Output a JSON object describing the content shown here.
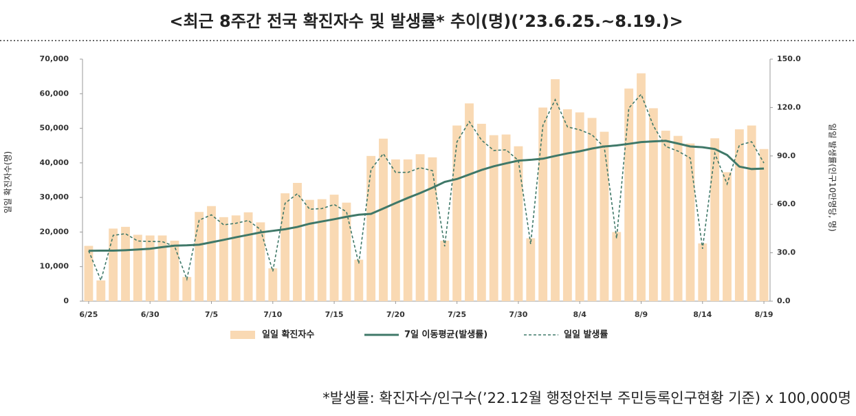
{
  "chart_data": {
    "type": "bar_line",
    "title": "<최근 8주간 전국 확진자수 및 발생률* 추이(명)(’23.6.25.~8.19.)>",
    "y_label": "일일 확진자수(명)",
    "y2_label": "일일 발생률(인구10만명당, 명)",
    "footnote": "*발생률: 확진자수/인구수(’22.12월 행정안전부 주민등록인구현황 기준) x 100,000명",
    "categories": [
      "6/25",
      null,
      null,
      null,
      null,
      "6/30",
      null,
      null,
      null,
      null,
      "7/5",
      null,
      null,
      null,
      null,
      "7/10",
      null,
      null,
      null,
      null,
      "7/15",
      null,
      null,
      null,
      null,
      "7/20",
      null,
      null,
      null,
      null,
      "7/25",
      null,
      null,
      null,
      null,
      "7/30",
      null,
      null,
      null,
      null,
      "8/4",
      null,
      null,
      null,
      null,
      "8/9",
      null,
      null,
      null,
      null,
      "8/14",
      null,
      null,
      null,
      null,
      "8/19"
    ],
    "ylim": [
      0,
      70000
    ],
    "yticks": [
      0,
      {
        "value": 10000,
        "label": "10,000"
      },
      {
        "value": 20000,
        "label": "20,000"
      },
      {
        "value": 30000,
        "label": "30,000"
      },
      {
        "value": 40000,
        "label": "40,000"
      },
      {
        "value": 50000,
        "label": "50,000"
      },
      {
        "value": 60000,
        "label": "60,000"
      },
      {
        "value": 70000,
        "label": "70,000"
      }
    ],
    "y2lim": [
      0,
      150
    ],
    "y2ticks": [
      {
        "value": 0,
        "label": "0.0"
      },
      {
        "value": 30,
        "label": "30.0"
      },
      {
        "value": 60,
        "label": "60.0"
      },
      {
        "value": 90,
        "label": "90.0"
      },
      {
        "value": 120,
        "label": "120.0"
      },
      {
        "value": 150,
        "label": "150.0"
      }
    ],
    "series": [
      {
        "name": "일일 확진자수",
        "kind": "bar",
        "color": "#f9d9b3",
        "values": [
          16000,
          6000,
          21000,
          21500,
          19200,
          19000,
          19000,
          17500,
          7000,
          25800,
          27500,
          24300,
          24800,
          25700,
          22800,
          9500,
          31200,
          34200,
          29300,
          29500,
          30800,
          28500,
          12000,
          42000,
          47000,
          41000,
          41000,
          42500,
          41600,
          17500,
          50800,
          57200,
          51300,
          48000,
          48200,
          44800,
          18200,
          56000,
          64200,
          55500,
          54600,
          53000,
          49000,
          20000,
          61500,
          65900,
          55800,
          49300,
          47800,
          45600,
          16700,
          47100,
          37300,
          49700,
          50800,
          44000
        ]
      },
      {
        "name": "7일 이동평균(발생률)",
        "kind": "line",
        "style": "solid",
        "axis": "y2",
        "color": "#3f7868",
        "values": [
          31.2,
          31.3,
          31.3,
          31.6,
          32.0,
          32.5,
          33.5,
          34.4,
          34.6,
          35.0,
          36.5,
          38.0,
          39.6,
          41.1,
          42.6,
          43.6,
          44.6,
          46.0,
          48.0,
          49.4,
          50.8,
          52.3,
          53.6,
          54.1,
          57.4,
          60.8,
          64.0,
          67.0,
          70.3,
          73.9,
          75.7,
          78.5,
          81.3,
          83.6,
          85.4,
          87.1,
          87.6,
          88.3,
          90.0,
          91.6,
          92.9,
          94.6,
          95.9,
          96.5,
          97.5,
          98.6,
          99.0,
          99.4,
          97.7,
          95.9,
          95.4,
          94.3,
          90.6,
          83.4,
          81.9,
          82.2
        ]
      },
      {
        "name": "일일 발생률",
        "kind": "line",
        "style": "dashed",
        "axis": "y2",
        "color": "#3f7868",
        "values": [
          31.2,
          12.9,
          40.8,
          41.8,
          37.3,
          37.0,
          36.9,
          34.0,
          13.6,
          50.2,
          53.5,
          47.3,
          48.3,
          50.0,
          44.4,
          18.5,
          60.7,
          66.6,
          57.0,
          57.4,
          59.9,
          55.4,
          23.3,
          81.7,
          91.4,
          79.8,
          79.8,
          82.7,
          80.9,
          34.0,
          98.8,
          111.3,
          99.8,
          93.4,
          93.8,
          87.2,
          35.4,
          109.0,
          124.9,
          108.0,
          106.2,
          103.1,
          95.3,
          38.9,
          119.7,
          128.2,
          108.6,
          95.9,
          93.0,
          88.7,
          32.5,
          91.6,
          72.6,
          96.7,
          98.8,
          85.6
        ]
      }
    ]
  }
}
